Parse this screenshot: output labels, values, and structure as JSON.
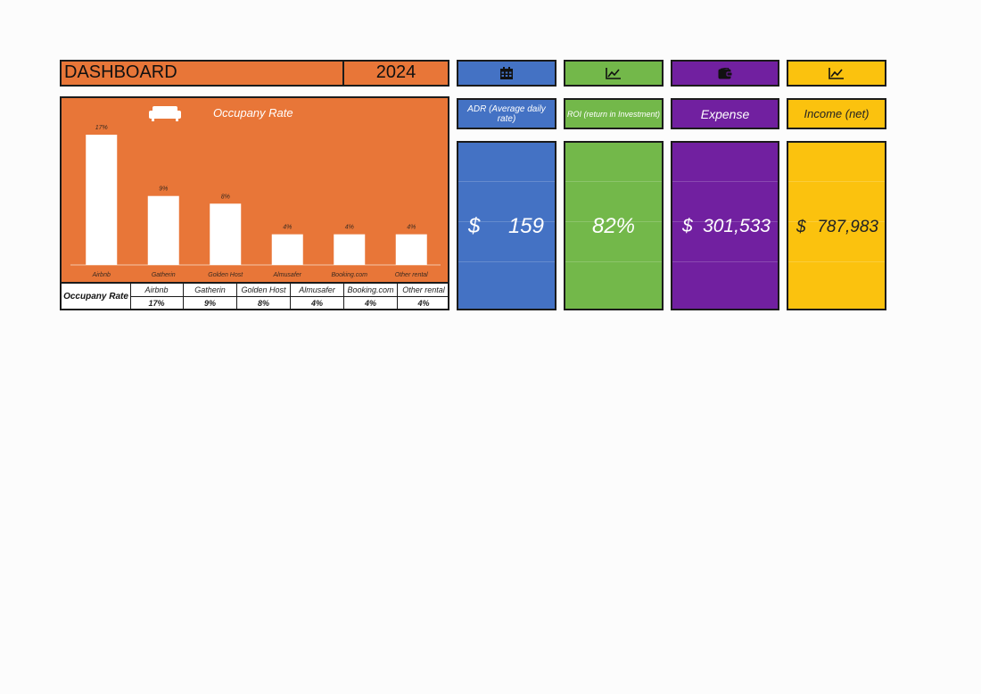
{
  "header": {
    "title": "DASHBOARD",
    "year": "2024"
  },
  "accent_colors": {
    "orange": "#e87638",
    "blue": "#4472c4",
    "green": "#73b84a",
    "purple": "#7120a0",
    "yellow": "#fbc20e"
  },
  "cards": [
    {
      "icon": "calendar-icon",
      "label": "ADR (Average daily rate)",
      "currency": "$",
      "value": "159"
    },
    {
      "icon": "trend-chart-icon",
      "label": "ROI (return in Investment)",
      "currency": "",
      "value": "82%"
    },
    {
      "icon": "wallet-icon",
      "label": "Expense",
      "currency": "$",
      "value": "301,533"
    },
    {
      "icon": "trend-chart-icon",
      "label": "Income (net)",
      "currency": "$",
      "value": "787,983"
    }
  ],
  "chart_data": {
    "type": "bar",
    "title": "Occupany Rate",
    "icon": "sofa-icon",
    "categories": [
      "Airbnb",
      "Gatherin",
      "Golden Host",
      "Almusafer",
      "Booking.com",
      "Other rental"
    ],
    "values": [
      17,
      9,
      8,
      4,
      4,
      4
    ],
    "data_labels": [
      "17%",
      "9%",
      "8%",
      "4%",
      "4%",
      "4%"
    ],
    "unit": "%",
    "ylim": [
      0,
      17
    ],
    "grid": false
  },
  "table": {
    "row_header": "Occupany Rate",
    "columns": [
      "Airbnb",
      "Gatherin",
      "Golden Host",
      "Almusafer",
      "Booking.com",
      "Other rental"
    ],
    "values": [
      "17%",
      "9%",
      "8%",
      "4%",
      "4%",
      "4%"
    ]
  }
}
